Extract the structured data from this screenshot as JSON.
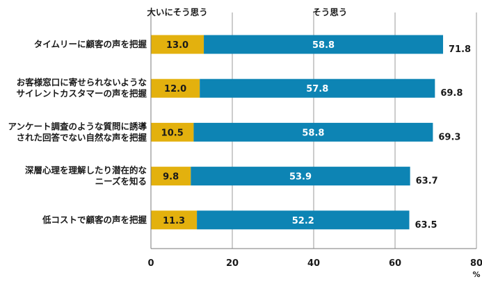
{
  "chart_data": {
    "type": "bar",
    "orientation": "horizontal",
    "stacked": true,
    "categories": [
      [
        "タイムリーに顧客の声を把握"
      ],
      [
        "お客様窓口に寄せられないような",
        "サイレントカスタマーの声を把握"
      ],
      [
        "アンケート調査のような質問に誘導",
        "された回答でない自然な声を把握"
      ],
      [
        "深層心理を理解したり潜在的な",
        "ニーズを知る"
      ],
      [
        "低コストで顧客の声を把握"
      ]
    ],
    "series": [
      {
        "name": "大いにそう思う",
        "color": "#e3b10e",
        "values": [
          13.0,
          12.0,
          10.5,
          9.8,
          11.3
        ]
      },
      {
        "name": "そう思う",
        "color": "#0d84b4",
        "values": [
          58.8,
          57.8,
          58.8,
          53.9,
          52.2
        ]
      }
    ],
    "totals": [
      71.8,
      69.8,
      69.3,
      63.7,
      63.5
    ],
    "xlim": [
      0,
      80
    ],
    "xticks": [
      0,
      20,
      40,
      60,
      80
    ],
    "x_unit": "%",
    "grid": true,
    "legend_position": "top"
  }
}
